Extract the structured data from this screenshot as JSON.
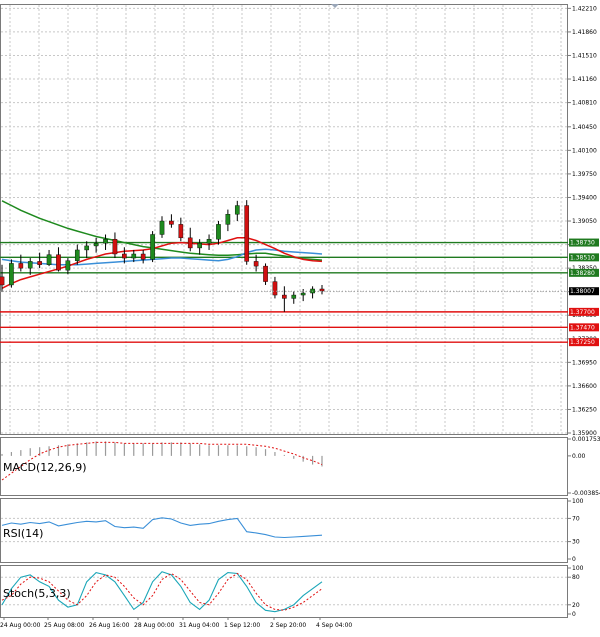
{
  "chart_data": {
    "type": "candlestick",
    "instrument_price": "1.38007",
    "x_tick_labels": [
      "24 Aug 00:00",
      "25 Aug 08:00",
      "26 Aug 16:00",
      "28 Aug 00:00",
      "31 Aug 04:00",
      "1 Sep 12:00",
      "2 Sep 20:00",
      "4 Sep 04:00"
    ],
    "y_tick_labels": [
      "1.42210",
      "1.41860",
      "1.41510",
      "1.41160",
      "1.40810",
      "1.40450",
      "1.40100",
      "1.39750",
      "1.39400",
      "1.39050",
      "1.38700",
      "1.38350",
      "1.38000",
      "1.37650",
      "1.37300",
      "1.36950",
      "1.36600",
      "1.36250",
      "1.35900"
    ],
    "ylim": [
      1.359,
      1.4226
    ],
    "candles": [
      {
        "o": 1.3822,
        "h": 1.384,
        "l": 1.38,
        "c": 1.381
      },
      {
        "o": 1.381,
        "h": 1.3848,
        "l": 1.3806,
        "c": 1.3842
      },
      {
        "o": 1.3842,
        "h": 1.3855,
        "l": 1.383,
        "c": 1.3835
      },
      {
        "o": 1.3835,
        "h": 1.385,
        "l": 1.3825,
        "c": 1.3845
      },
      {
        "o": 1.3845,
        "h": 1.3858,
        "l": 1.3835,
        "c": 1.384
      },
      {
        "o": 1.384,
        "h": 1.3862,
        "l": 1.3838,
        "c": 1.3855
      },
      {
        "o": 1.3855,
        "h": 1.3866,
        "l": 1.383,
        "c": 1.3832
      },
      {
        "o": 1.3832,
        "h": 1.385,
        "l": 1.3826,
        "c": 1.3846
      },
      {
        "o": 1.3846,
        "h": 1.387,
        "l": 1.384,
        "c": 1.3862
      },
      {
        "o": 1.3862,
        "h": 1.3875,
        "l": 1.385,
        "c": 1.3868
      },
      {
        "o": 1.3868,
        "h": 1.388,
        "l": 1.3858,
        "c": 1.3872
      },
      {
        "o": 1.3872,
        "h": 1.3885,
        "l": 1.3862,
        "c": 1.3878
      },
      {
        "o": 1.3878,
        "h": 1.3888,
        "l": 1.385,
        "c": 1.3856
      },
      {
        "o": 1.3856,
        "h": 1.3866,
        "l": 1.3842,
        "c": 1.385
      },
      {
        "o": 1.385,
        "h": 1.3862,
        "l": 1.3844,
        "c": 1.3856
      },
      {
        "o": 1.3856,
        "h": 1.3862,
        "l": 1.3842,
        "c": 1.3848
      },
      {
        "o": 1.3848,
        "h": 1.389,
        "l": 1.3844,
        "c": 1.3885
      },
      {
        "o": 1.3885,
        "h": 1.3912,
        "l": 1.388,
        "c": 1.3905
      },
      {
        "o": 1.3905,
        "h": 1.3915,
        "l": 1.3895,
        "c": 1.39
      },
      {
        "o": 1.39,
        "h": 1.391,
        "l": 1.3875,
        "c": 1.388
      },
      {
        "o": 1.388,
        "h": 1.3895,
        "l": 1.386,
        "c": 1.3865
      },
      {
        "o": 1.3865,
        "h": 1.3878,
        "l": 1.3855,
        "c": 1.3872
      },
      {
        "o": 1.3872,
        "h": 1.3885,
        "l": 1.3862,
        "c": 1.3878
      },
      {
        "o": 1.3878,
        "h": 1.3905,
        "l": 1.387,
        "c": 1.39
      },
      {
        "o": 1.39,
        "h": 1.3922,
        "l": 1.389,
        "c": 1.3915
      },
      {
        "o": 1.3915,
        "h": 1.3935,
        "l": 1.3905,
        "c": 1.3928
      },
      {
        "o": 1.3928,
        "h": 1.3936,
        "l": 1.384,
        "c": 1.3845
      },
      {
        "o": 1.3845,
        "h": 1.3855,
        "l": 1.383,
        "c": 1.3838
      },
      {
        "o": 1.3838,
        "h": 1.3842,
        "l": 1.381,
        "c": 1.3815
      },
      {
        "o": 1.3815,
        "h": 1.3822,
        "l": 1.379,
        "c": 1.3795
      },
      {
        "o": 1.3795,
        "h": 1.3808,
        "l": 1.377,
        "c": 1.379
      },
      {
        "o": 1.379,
        "h": 1.38,
        "l": 1.3782,
        "c": 1.3795
      },
      {
        "o": 1.3795,
        "h": 1.3804,
        "l": 1.3786,
        "c": 1.3798
      },
      {
        "o": 1.3798,
        "h": 1.3808,
        "l": 1.379,
        "c": 1.3804
      },
      {
        "o": 1.3804,
        "h": 1.381,
        "l": 1.3796,
        "c": 1.3801
      }
    ],
    "ma_fast": [
      1.3805,
      1.3812,
      1.3818,
      1.3822,
      1.3826,
      1.383,
      1.3834,
      1.3838,
      1.3843,
      1.3848,
      1.3852,
      1.3856,
      1.3858,
      1.386,
      1.3861,
      1.3862,
      1.3864,
      1.3868,
      1.3872,
      1.3873,
      1.3872,
      1.3871,
      1.387,
      1.3872,
      1.3876,
      1.388,
      1.388,
      1.3876,
      1.387,
      1.3864,
      1.3857,
      1.3852,
      1.3848,
      1.3846,
      1.3845
    ],
    "ma_slow": [
      1.3935,
      1.3928,
      1.3921,
      1.3915,
      1.3909,
      1.3904,
      1.3899,
      1.3894,
      1.389,
      1.3886,
      1.3882,
      1.3879,
      1.3876,
      1.3873,
      1.387,
      1.3867,
      1.3865,
      1.3863,
      1.3861,
      1.3859,
      1.3857,
      1.3856,
      1.3855,
      1.3854,
      1.3854,
      1.3855,
      1.3856,
      1.3857,
      1.3857,
      1.3855,
      1.3853,
      1.3851,
      1.3849,
      1.3848,
      1.3847
    ],
    "ma_mid": [
      1.3848,
      1.3846,
      1.3844,
      1.3843,
      1.3842,
      1.3841,
      1.384,
      1.384,
      1.384,
      1.3841,
      1.3842,
      1.3843,
      1.3844,
      1.3845,
      1.3846,
      1.3847,
      1.3848,
      1.3849,
      1.385,
      1.385,
      1.3849,
      1.3848,
      1.3847,
      1.3846,
      1.3848,
      1.3852,
      1.3858,
      1.3862,
      1.3863,
      1.3862,
      1.386,
      1.3859,
      1.3858,
      1.3857,
      1.3856
    ],
    "levels": [
      {
        "value": 1.3873,
        "label": "1.38730",
        "color": "#1f7a1f"
      },
      {
        "value": 1.3851,
        "label": "1.38510",
        "color": "#1f7a1f"
      },
      {
        "value": 1.3828,
        "label": "1.38280",
        "color": "#1f7a1f"
      },
      {
        "value": 1.377,
        "label": "1.37700",
        "color": "#e01010"
      },
      {
        "value": 1.3747,
        "label": "1.37470",
        "color": "#e01010"
      },
      {
        "value": 1.3725,
        "label": "1.37250",
        "color": "#e01010"
      }
    ],
    "macd": {
      "label": "MACD(12,26,9)",
      "tick_labels": [
        "0.001753",
        "0.00",
        "-0.003854"
      ],
      "ylim": [
        -0.003854,
        0.001753
      ],
      "histogram": [
        0.0002,
        0.0004,
        0.0006,
        0.0008,
        0.0009,
        0.001,
        0.0011,
        0.0012,
        0.0013,
        0.0014,
        0.0015,
        0.0015,
        0.0014,
        0.0013,
        0.0013,
        0.0013,
        0.0013,
        0.0014,
        0.0014,
        0.0014,
        0.0013,
        0.0012,
        0.0011,
        0.0011,
        0.0011,
        0.0011,
        0.001,
        0.0009,
        0.0007,
        0.0004,
        0.0001,
        -0.0003,
        -0.0006,
        -0.0009,
        -0.0011
      ],
      "signal": [
        -0.0025,
        -0.0018,
        -0.0011,
        -0.0004,
        0.0002,
        0.0006,
        0.0009,
        0.0011,
        0.0012,
        0.0013,
        0.0014,
        0.0014,
        0.0014,
        0.0013,
        0.0013,
        0.0013,
        0.0013,
        0.0013,
        0.0013,
        0.0013,
        0.0013,
        0.0013,
        0.0012,
        0.0012,
        0.0012,
        0.0012,
        0.0012,
        0.0011,
        0.001,
        0.0008,
        0.0005,
        0.0002,
        -0.0002,
        -0.0005,
        -0.0009
      ]
    },
    "rsi": {
      "label": "RSI(14)",
      "tick_labels": [
        "100",
        "70",
        "30",
        "0"
      ],
      "levels": [
        70,
        30
      ],
      "values": [
        58,
        62,
        60,
        63,
        61,
        64,
        57,
        60,
        63,
        65,
        64,
        66,
        56,
        54,
        55,
        53,
        68,
        71,
        69,
        62,
        58,
        60,
        61,
        65,
        68,
        70,
        47,
        45,
        42,
        38,
        37,
        38,
        39,
        40,
        41
      ]
    },
    "stoch": {
      "label": "Stoch(5,3,3)",
      "tick_labels": [
        "100",
        "80",
        "20",
        "0"
      ],
      "levels": [
        80,
        20
      ],
      "main": [
        20,
        55,
        80,
        85,
        70,
        60,
        30,
        15,
        20,
        70,
        90,
        85,
        70,
        40,
        10,
        25,
        70,
        92,
        85,
        60,
        25,
        10,
        30,
        75,
        90,
        88,
        60,
        25,
        8,
        5,
        10,
        20,
        40,
        55,
        70
      ],
      "signal": [
        30,
        40,
        65,
        80,
        78,
        70,
        50,
        30,
        20,
        40,
        70,
        85,
        80,
        60,
        35,
        20,
        40,
        75,
        88,
        75,
        50,
        25,
        20,
        45,
        75,
        88,
        75,
        45,
        20,
        10,
        8,
        15,
        25,
        40,
        55
      ]
    }
  }
}
